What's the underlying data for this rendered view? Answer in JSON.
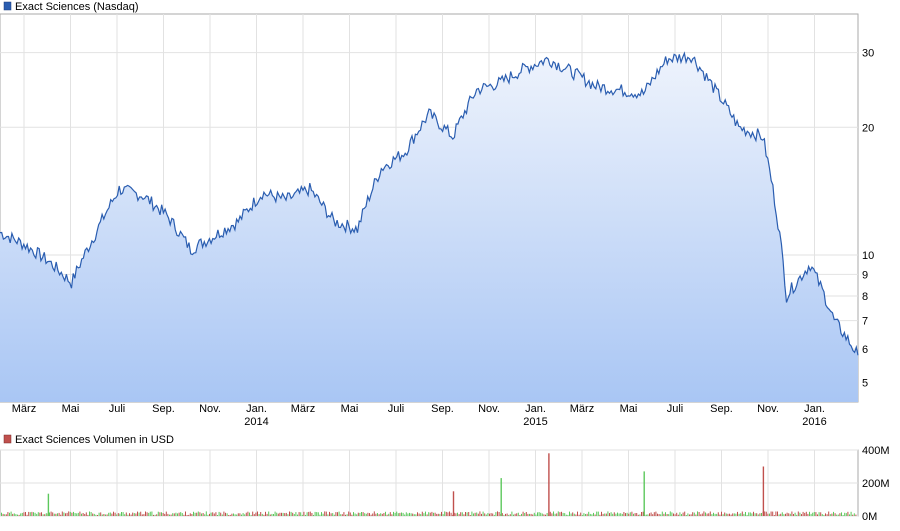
{
  "chart_data": [
    {
      "type": "area",
      "legend": "Exact Sciences (Nasdaq)",
      "series_color": "#2a5db0",
      "fill_top_color": "#eef3fc",
      "fill_bottom_color": "#a9c6f4",
      "y_scale": "log",
      "ylim": [
        4.5,
        37
      ],
      "y_ticks": [
        5,
        6,
        7,
        8,
        9,
        10,
        20,
        30
      ],
      "x_tick_labels": [
        "März",
        "Mai",
        "Juli",
        "Sep.",
        "Nov.",
        "Jan.",
        "März",
        "Mai",
        "Juli",
        "Sep.",
        "Nov.",
        "Jan.",
        "März",
        "Mai",
        "Juli",
        "Sep.",
        "Nov.",
        "Jan."
      ],
      "year_labels": [
        {
          "at_tick": 5,
          "label": "2014"
        },
        {
          "at_tick": 11,
          "label": "2015"
        },
        {
          "at_tick": 17,
          "label": "2016"
        }
      ],
      "x_range": [
        "2013-02",
        "2016-02"
      ],
      "x": [
        "2013-02",
        "2013-03",
        "2013-04",
        "2013-05",
        "2013-06",
        "2013-07",
        "2013-08",
        "2013-09",
        "2013-10",
        "2013-11",
        "2013-12",
        "2014-01",
        "2014-02",
        "2014-03",
        "2014-04",
        "2014-05",
        "2014-06",
        "2014-07",
        "2014-08",
        "2014-09",
        "2014-10",
        "2014-11",
        "2014-12",
        "2015-01",
        "2015-02",
        "2015-03",
        "2015-04",
        "2015-05",
        "2015-06",
        "2015-07",
        "2015-08",
        "2015-09",
        "2015-10",
        "2015-11",
        "2015-12",
        "2016-01",
        "2016-02"
      ],
      "values": [
        11.3,
        10.6,
        9.7,
        8.6,
        11.2,
        14.3,
        13.8,
        12.4,
        10.3,
        11.1,
        12.0,
        14.0,
        13.5,
        14.3,
        12.0,
        11.5,
        16.0,
        17.5,
        21.5,
        19.0,
        24.5,
        25.5,
        27.5,
        29.0,
        27.0,
        25.0,
        24.5,
        24.0,
        29.0,
        29.5,
        24.5,
        20.0,
        19.0,
        8.0,
        9.5,
        7.0,
        5.8
      ],
      "grid": true
    },
    {
      "type": "bar",
      "legend": "Exact Sciences Volumen in USD",
      "series_color": "#c0504d",
      "up_color": "#5cc85c",
      "y_ticks": [
        "400M",
        "200M",
        "0M"
      ],
      "ylim": [
        0,
        400
      ],
      "peaks_m": [
        {
          "x": "2013-04",
          "v": 135
        },
        {
          "x": "2014-09",
          "v": 150
        },
        {
          "x": "2014-11",
          "v": 230
        },
        {
          "x": "2015-01",
          "v": 380
        },
        {
          "x": "2015-05",
          "v": 270
        },
        {
          "x": "2015-10",
          "v": 300
        }
      ]
    }
  ]
}
